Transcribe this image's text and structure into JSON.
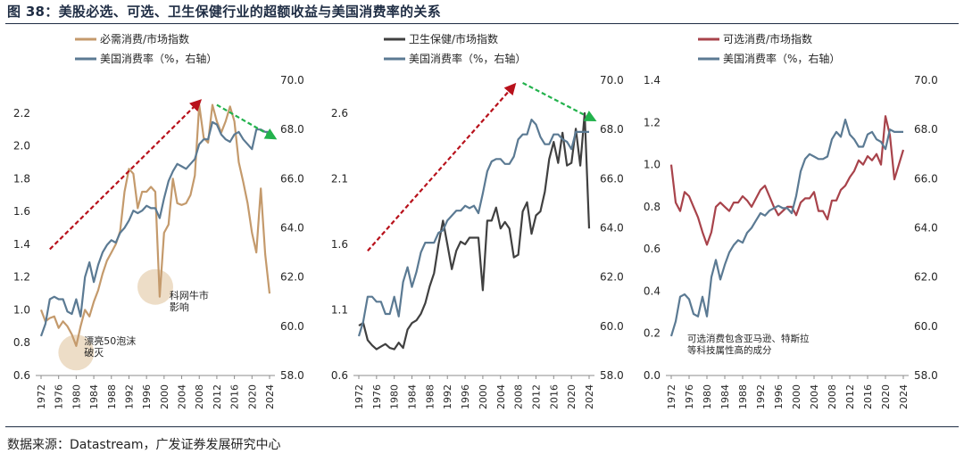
{
  "figure": {
    "title": "图 38：美股必选、可选、卫生保健行业的超额收益与美国消费率的关系",
    "source": "数据来源：Datastream，广发证券发展研究中心"
  },
  "colors": {
    "staples": "#c49a6c",
    "health": "#404040",
    "discretionary": "#a8434b",
    "consumption": "#5b7a93",
    "arrow_up": "#b8111b",
    "arrow_down": "#22b24c",
    "bubble": "#ead7bd",
    "axis": "#8c8c8c",
    "text": "#262626"
  },
  "chart_data": [
    {
      "type": "line",
      "x": [
        1972,
        1973,
        1974,
        1975,
        1976,
        1977,
        1978,
        1979,
        1980,
        1981,
        1982,
        1983,
        1984,
        1985,
        1986,
        1987,
        1988,
        1989,
        1990,
        1991,
        1992,
        1993,
        1994,
        1995,
        1996,
        1997,
        1998,
        1999,
        2000,
        2001,
        2002,
        2003,
        2004,
        2005,
        2006,
        2007,
        2008,
        2009,
        2010,
        2011,
        2012,
        2013,
        2014,
        2015,
        2016,
        2017,
        2018,
        2019,
        2020,
        2021,
        2022,
        2023,
        2024
      ],
      "xticks": [
        1972,
        1976,
        1980,
        1984,
        1988,
        1992,
        1996,
        2000,
        2004,
        2008,
        2012,
        2016,
        2020,
        2024
      ],
      "ylim": [
        0.6,
        2.4
      ],
      "yticks": [
        0.6,
        0.8,
        1.0,
        1.2,
        1.4,
        1.6,
        1.8,
        2.0,
        2.2
      ],
      "ytick_decimals": 1,
      "y2lim": [
        58,
        70
      ],
      "y2ticks": [
        58,
        60,
        62,
        64,
        66,
        68,
        70
      ],
      "series": [
        {
          "name": "必需消费/市场指数",
          "axis": "left",
          "color_key": "staples",
          "values": [
            1.0,
            0.93,
            0.95,
            0.96,
            0.89,
            0.93,
            0.9,
            0.85,
            0.78,
            0.9,
            1.0,
            0.96,
            1.05,
            1.12,
            1.22,
            1.3,
            1.35,
            1.4,
            1.48,
            1.72,
            1.86,
            1.83,
            1.62,
            1.72,
            1.72,
            1.75,
            1.72,
            1.08,
            1.47,
            1.52,
            1.8,
            1.65,
            1.64,
            1.65,
            1.7,
            1.82,
            2.25,
            2.05,
            2.02,
            2.25,
            2.15,
            2.08,
            2.15,
            2.24,
            2.15,
            1.9,
            1.78,
            1.65,
            1.47,
            1.35,
            1.74,
            1.34,
            1.1
          ]
        },
        {
          "name": "美国消费率（%，右轴）",
          "axis": "right",
          "color_key": "consumption",
          "values": [
            59.6,
            60.1,
            61.1,
            61.2,
            61.1,
            61.1,
            60.6,
            60.5,
            61.1,
            60.4,
            62.0,
            62.6,
            61.8,
            62.5,
            63.0,
            63.3,
            63.5,
            63.4,
            63.8,
            64.0,
            64.3,
            64.7,
            64.6,
            64.7,
            64.9,
            64.8,
            64.8,
            64.4,
            65.2,
            65.9,
            66.3,
            66.6,
            66.5,
            66.4,
            66.6,
            66.8,
            67.4,
            67.6,
            67.6,
            68.3,
            68.2,
            67.8,
            67.6,
            67.5,
            67.8,
            67.9,
            67.6,
            67.4,
            67.2,
            68.0,
            68.0,
            67.9,
            67.9
          ]
        }
      ],
      "annotations": [
        "科网牛市\n影响",
        "漂亮50泡沫\n破灭"
      ]
    },
    {
      "type": "line",
      "x": [
        1972,
        1973,
        1974,
        1975,
        1976,
        1977,
        1978,
        1979,
        1980,
        1981,
        1982,
        1983,
        1984,
        1985,
        1986,
        1987,
        1988,
        1989,
        1990,
        1991,
        1992,
        1993,
        1994,
        1995,
        1996,
        1997,
        1998,
        1999,
        2000,
        2001,
        2002,
        2003,
        2004,
        2005,
        2006,
        2007,
        2008,
        2009,
        2010,
        2011,
        2012,
        2013,
        2014,
        2015,
        2016,
        2017,
        2018,
        2019,
        2020,
        2021,
        2022,
        2023,
        2024
      ],
      "xticks": [
        1972,
        1976,
        1980,
        1984,
        1988,
        1992,
        1996,
        2000,
        2004,
        2008,
        2012,
        2016,
        2020,
        2024
      ],
      "ylim": [
        0.6,
        2.85
      ],
      "yticks": [
        0.6,
        1.1,
        1.6,
        2.1,
        2.6
      ],
      "ytick_decimals": 1,
      "y2lim": [
        58,
        70
      ],
      "y2ticks": [
        58,
        60,
        62,
        64,
        66,
        68,
        70
      ],
      "series": [
        {
          "name": "卫生保健/市场指数",
          "axis": "left",
          "color_key": "health",
          "values": [
            0.98,
            1.0,
            0.87,
            0.83,
            0.8,
            0.82,
            0.84,
            0.81,
            0.8,
            0.85,
            0.81,
            0.95,
            1.0,
            1.02,
            1.07,
            1.15,
            1.28,
            1.38,
            1.6,
            1.78,
            1.6,
            1.41,
            1.55,
            1.62,
            1.6,
            1.65,
            1.65,
            1.65,
            1.25,
            1.78,
            1.78,
            1.88,
            1.72,
            1.77,
            1.72,
            1.5,
            1.52,
            1.85,
            1.92,
            1.68,
            1.82,
            1.85,
            2.0,
            2.25,
            2.38,
            2.22,
            2.45,
            2.2,
            2.22,
            2.48,
            2.2,
            2.6,
            1.72
          ]
        },
        {
          "name": "美国消费率（%，右轴）",
          "axis": "right",
          "color_key": "consumption",
          "values": [
            59.6,
            60.2,
            61.2,
            61.2,
            61.0,
            61.0,
            60.5,
            60.5,
            61.2,
            60.4,
            61.8,
            62.4,
            61.6,
            62.2,
            63.0,
            63.4,
            63.4,
            63.4,
            63.8,
            63.9,
            64.3,
            64.5,
            64.7,
            64.7,
            64.9,
            64.8,
            64.9,
            64.6,
            65.4,
            66.3,
            66.7,
            66.8,
            66.8,
            66.6,
            66.6,
            66.9,
            67.6,
            67.8,
            67.8,
            68.4,
            68.2,
            67.7,
            67.4,
            67.4,
            67.8,
            67.8,
            67.6,
            67.5,
            67.2,
            67.9,
            67.9,
            67.9,
            67.9
          ]
        }
      ]
    },
    {
      "type": "line",
      "x": [
        1972,
        1973,
        1974,
        1975,
        1976,
        1977,
        1978,
        1979,
        1980,
        1981,
        1982,
        1983,
        1984,
        1985,
        1986,
        1987,
        1988,
        1989,
        1990,
        1991,
        1992,
        1993,
        1994,
        1995,
        1996,
        1997,
        1998,
        1999,
        2000,
        2001,
        2002,
        2003,
        2004,
        2005,
        2006,
        2007,
        2008,
        2009,
        2010,
        2011,
        2012,
        2013,
        2014,
        2015,
        2016,
        2017,
        2018,
        2019,
        2020,
        2021,
        2022,
        2023,
        2024
      ],
      "xticks": [
        1972,
        1976,
        1980,
        1984,
        1988,
        1992,
        1996,
        2000,
        2004,
        2008,
        2012,
        2016,
        2020,
        2024
      ],
      "ylim": [
        0.0,
        1.4
      ],
      "yticks": [
        0.0,
        0.2,
        0.4,
        0.6,
        0.8,
        1.0,
        1.2,
        1.4
      ],
      "ytick_decimals": 1,
      "y2lim": [
        58,
        70
      ],
      "y2ticks": [
        58,
        60,
        62,
        64,
        66,
        68,
        70
      ],
      "series": [
        {
          "name": "可选消费/市场指数",
          "axis": "left",
          "color_key": "discretionary",
          "values": [
            1.0,
            0.82,
            0.78,
            0.87,
            0.85,
            0.8,
            0.75,
            0.68,
            0.62,
            0.68,
            0.8,
            0.82,
            0.8,
            0.78,
            0.82,
            0.82,
            0.85,
            0.83,
            0.8,
            0.84,
            0.88,
            0.9,
            0.85,
            0.8,
            0.76,
            0.78,
            0.8,
            0.8,
            0.76,
            0.82,
            0.84,
            0.84,
            0.87,
            0.78,
            0.78,
            0.74,
            0.83,
            0.83,
            0.88,
            0.9,
            0.94,
            0.97,
            1.02,
            1.0,
            1.04,
            1.02,
            1.05,
            1.0,
            1.23,
            1.14,
            0.93,
            1.0,
            1.07
          ]
        },
        {
          "name": "美国消费率（%，右轴）",
          "axis": "right",
          "color_key": "consumption",
          "values": [
            59.6,
            60.2,
            61.2,
            61.3,
            61.1,
            60.5,
            60.4,
            61.2,
            60.4,
            62.0,
            62.7,
            61.9,
            62.5,
            63.0,
            63.3,
            63.5,
            63.4,
            63.8,
            64.0,
            64.3,
            64.6,
            64.5,
            64.7,
            64.8,
            64.9,
            64.8,
            64.8,
            64.6,
            65.3,
            66.3,
            66.8,
            67.0,
            66.9,
            66.8,
            66.8,
            66.9,
            67.6,
            67.9,
            67.7,
            68.4,
            67.8,
            67.6,
            67.3,
            67.3,
            67.8,
            67.9,
            67.6,
            67.5,
            67.2,
            68.0,
            67.9,
            67.9,
            67.9
          ]
        }
      ],
      "annotations": [
        "可选消费包含亚马逊、特斯拉\n等科技属性高的成分"
      ]
    }
  ]
}
